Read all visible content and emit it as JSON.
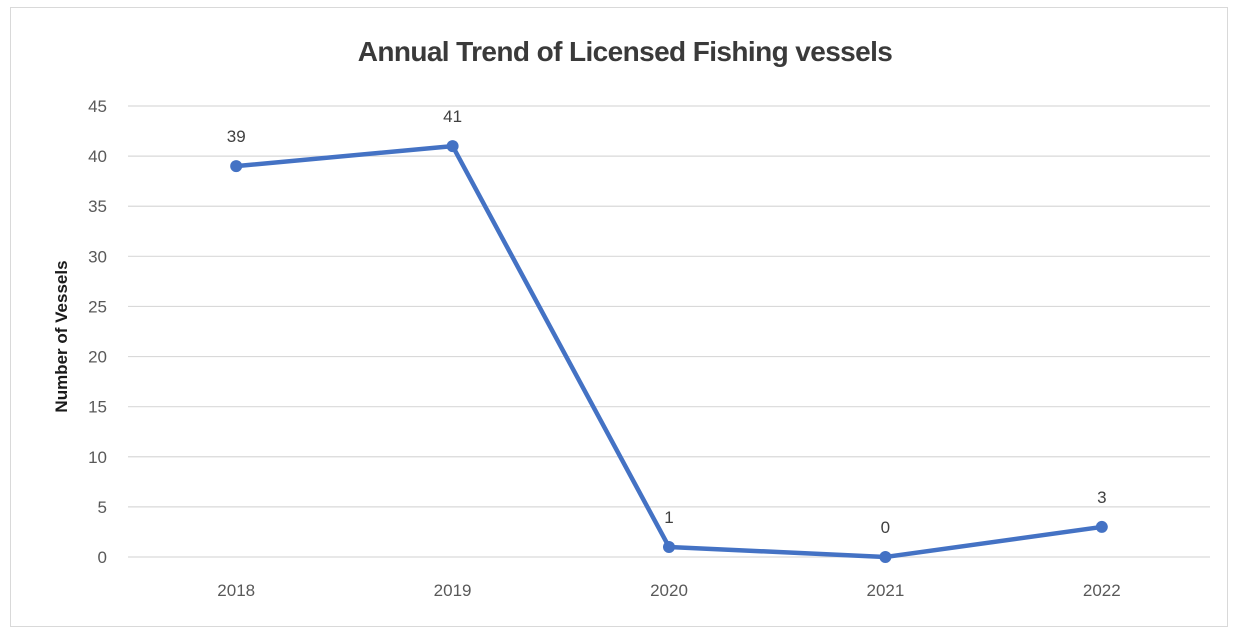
{
  "chart_data": {
    "type": "line",
    "title": "Annual Trend of Licensed Fishing vessels",
    "xlabel": "",
    "ylabel": "Number of Vessels",
    "categories": [
      "2018",
      "2019",
      "2020",
      "2021",
      "2022"
    ],
    "series": [
      {
        "values": [
          39,
          41,
          1,
          0,
          3
        ],
        "color": "#4472c4"
      }
    ],
    "ylim": [
      0,
      45
    ],
    "yticks": [
      0,
      5,
      10,
      15,
      20,
      25,
      30,
      35,
      40,
      45
    ],
    "grid": true,
    "data_labels": true,
    "legend": "none"
  }
}
